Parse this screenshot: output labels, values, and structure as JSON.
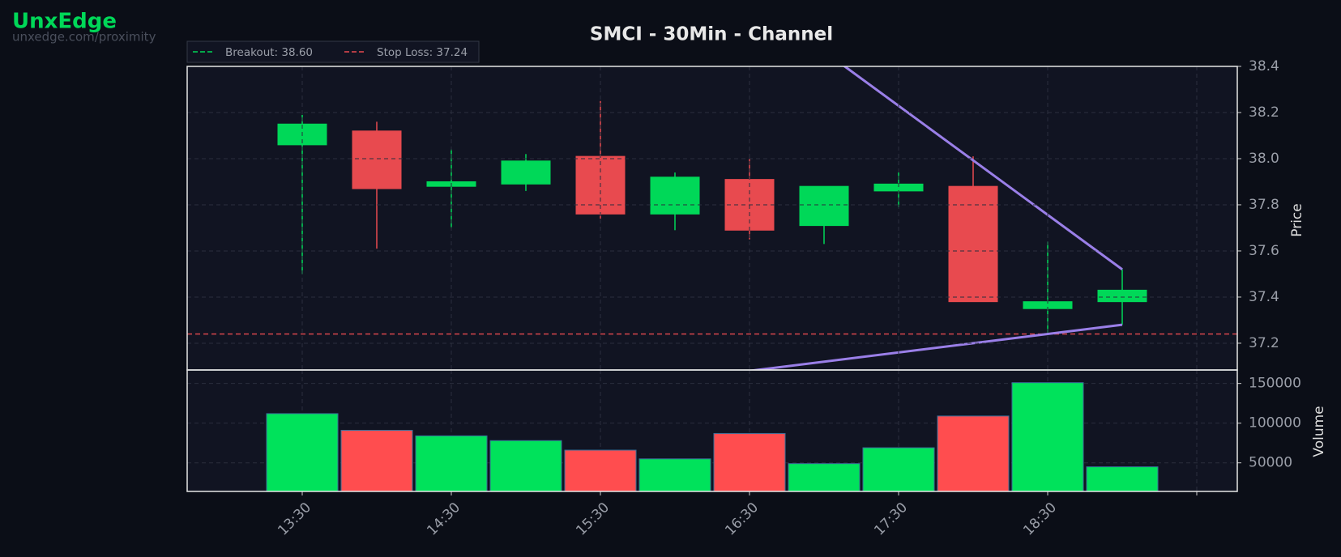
{
  "brand": {
    "name": "UnxEdge",
    "url": "unxedge.com/proximity"
  },
  "chart_data": {
    "type": "candlestick",
    "title": "SMCI - 30Min - Channel",
    "categories": [
      "13:30",
      null,
      "14:30",
      null,
      "15:30",
      null,
      "16:30",
      null,
      "17:30",
      null,
      "18:30",
      null
    ],
    "open": [
      38.06,
      38.12,
      37.88,
      37.89,
      38.01,
      37.76,
      37.91,
      37.71,
      37.86,
      37.88,
      37.35,
      37.38
    ],
    "high": [
      38.19,
      38.16,
      38.04,
      38.02,
      38.25,
      37.94,
      38.0,
      37.88,
      37.94,
      38.01,
      37.64,
      37.52
    ],
    "low": [
      37.5,
      37.61,
      37.7,
      37.86,
      37.74,
      37.69,
      37.65,
      37.63,
      37.79,
      37.38,
      37.24,
      37.28
    ],
    "close": [
      38.15,
      37.87,
      37.9,
      37.99,
      37.76,
      37.92,
      37.69,
      37.88,
      37.89,
      37.38,
      37.38,
      37.43
    ],
    "volume": [
      112000,
      91000,
      84000,
      78000,
      66000,
      55000,
      87000,
      49000,
      69000,
      109000,
      151000,
      45000
    ],
    "up_color": "#00d858",
    "down_color": "#e84a4f",
    "ylabel": "Price",
    "ylim": [
      37.084,
      38.4
    ],
    "yticks": [
      37.2,
      37.4,
      37.6,
      37.8,
      {
        "value": 38,
        "label": "38.0"
      },
      38.2,
      38.4
    ],
    "y2label": "Volume",
    "y2lim": [
      14000,
      167000
    ],
    "y2ticks": [
      50000,
      100000,
      150000
    ],
    "grid": true,
    "channel": {
      "color": "#9a7fe8",
      "upper": {
        "x": [
          0,
          11
        ],
        "y": [
          40.12,
          37.52
        ]
      },
      "lower": {
        "x": [
          0,
          11
        ],
        "y": [
          36.84,
          37.28
        ]
      }
    },
    "levels": [
      {
        "label": "Breakout: 38.60",
        "value": 38.6,
        "color": "#00d858"
      },
      {
        "label": "Stop Loss: 37.24",
        "value": 37.24,
        "color": "#e84a4f"
      }
    ]
  }
}
